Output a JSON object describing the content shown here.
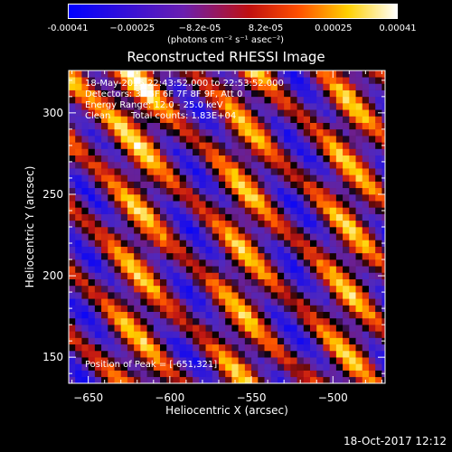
{
  "chart_data": {
    "type": "heatmap",
    "title": "Reconstructed RHESSI Image",
    "xlabel": "Heliocentric X (arcsec)",
    "ylabel": "Heliocentric Y (arcsec)",
    "xlim": [
      -662,
      -468
    ],
    "ylim": [
      134,
      326
    ],
    "x_ticks": [
      -650,
      -600,
      -550,
      -500
    ],
    "y_ticks": [
      150,
      200,
      250,
      300
    ],
    "x_tick_labels": [
      "−650",
      "−600",
      "−550",
      "−500"
    ],
    "y_tick_labels": [
      "150",
      "200",
      "250",
      "300"
    ],
    "colorbar": {
      "range": [
        -0.00041,
        0.00041
      ],
      "tick_values": [
        -0.00041,
        -0.00025,
        -8.2e-05,
        8.2e-05,
        0.00025,
        0.00041
      ],
      "tick_labels": [
        "-0.00041",
        "−0.00025",
        "−8.2e-05",
        "8.2e-05",
        "0.00025",
        "0.00041"
      ],
      "units": "(photons cm⁻² s⁻¹ asec⁻²)",
      "colors": [
        "#0000ff",
        "#6a1fb0",
        "#c01010",
        "#ff7000",
        "#ffff00",
        "#ffffff"
      ]
    },
    "peak": {
      "x": -651,
      "y": 321
    },
    "pixel_size_arcsec": 4
  },
  "annotations": {
    "time_range": "18-May-2015 22:43:52.000 to 22:53:52.000",
    "detectors": "Detectors: 3F 5F 6F 7F 8F 9F, Att 0",
    "energy_range": "Energy Range: 12.0 - 25.0 keV",
    "method": "Clean",
    "total_counts": "Total counts: 1.83E+04",
    "peak_position": "Position of Peak = [-651,321]"
  },
  "footer": {
    "timestamp": "18-Oct-2017 12:12"
  }
}
